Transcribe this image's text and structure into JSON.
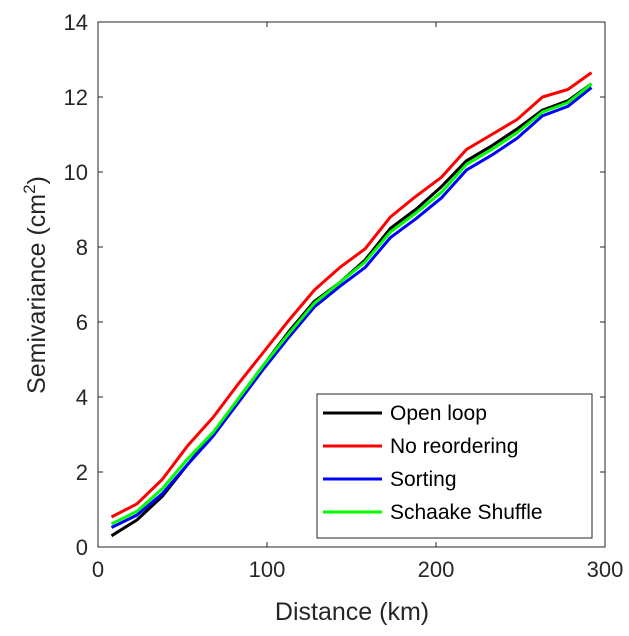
{
  "chart_data": {
    "type": "line",
    "title": "",
    "xlabel": "Distance (km)",
    "ylabel_main": "Semivariance (cm",
    "ylabel_sup": "2",
    "ylabel_close": ")",
    "xlim": [
      0,
      300
    ],
    "ylim": [
      0,
      14
    ],
    "xticks": [
      0,
      100,
      200,
      300
    ],
    "yticks": [
      0,
      2,
      4,
      6,
      8,
      10,
      12,
      14
    ],
    "grid": false,
    "legend_position": "bottom-right",
    "x": [
      8,
      23,
      38,
      53,
      68,
      83,
      98,
      113,
      128,
      143,
      158,
      173,
      188,
      203,
      218,
      233,
      248,
      263,
      278,
      292
    ],
    "series": [
      {
        "name": "Open loop",
        "color": "#000000",
        "values": [
          0.3,
          0.72,
          1.35,
          2.2,
          3.02,
          3.95,
          4.85,
          5.75,
          6.55,
          7.05,
          7.65,
          8.5,
          9.0,
          9.6,
          10.3,
          10.7,
          11.15,
          11.65,
          11.9,
          12.35
        ]
      },
      {
        "name": "No reordering",
        "color": "#ff0000",
        "values": [
          0.8,
          1.15,
          1.8,
          2.7,
          3.45,
          4.35,
          5.2,
          6.05,
          6.85,
          7.45,
          7.95,
          8.8,
          9.35,
          9.85,
          10.6,
          11.0,
          11.4,
          12.0,
          12.2,
          12.65
        ]
      },
      {
        "name": "Sorting",
        "color": "#0000ff",
        "values": [
          0.52,
          0.85,
          1.42,
          2.2,
          2.95,
          3.85,
          4.75,
          5.6,
          6.4,
          6.95,
          7.45,
          8.25,
          8.75,
          9.3,
          10.05,
          10.45,
          10.9,
          11.5,
          11.75,
          12.25
        ]
      },
      {
        "name": "Schaake Shuffle",
        "color": "#00ff00",
        "values": [
          0.62,
          0.95,
          1.55,
          2.35,
          3.05,
          3.95,
          4.85,
          5.7,
          6.5,
          7.05,
          7.6,
          8.4,
          8.9,
          9.45,
          10.2,
          10.6,
          11.05,
          11.6,
          11.85,
          12.35
        ]
      }
    ]
  }
}
